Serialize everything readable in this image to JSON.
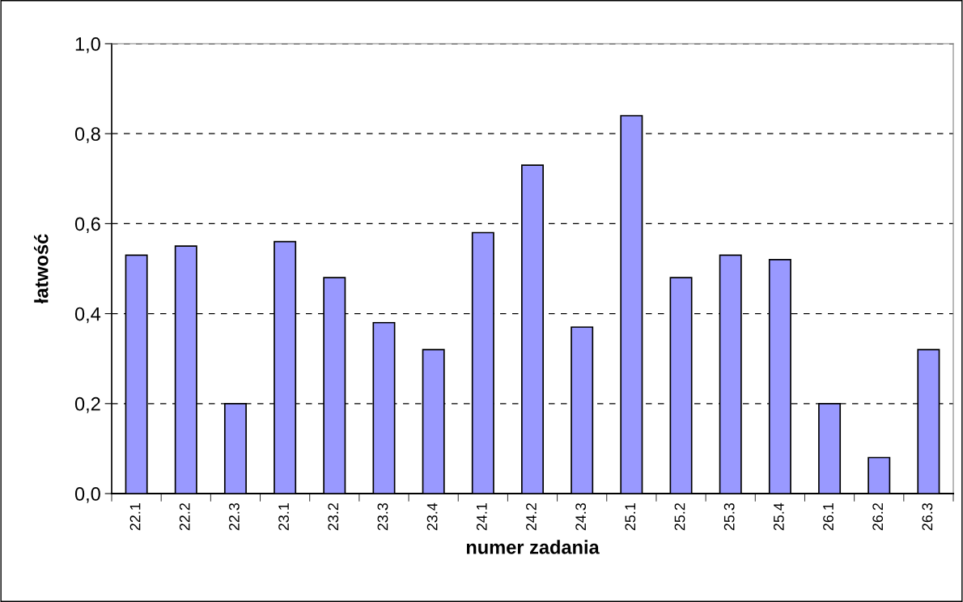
{
  "chart_data": {
    "type": "bar",
    "xlabel": "numer zadania",
    "ylabel": "łatwość",
    "categories": [
      "22.1",
      "22.2",
      "22.3",
      "23.1",
      "23.2",
      "23.3",
      "23.4",
      "24.1",
      "24.2",
      "24.3",
      "25.1",
      "25.2",
      "25.3",
      "25.4",
      "26.1",
      "26.2",
      "26.3"
    ],
    "values": [
      0.53,
      0.55,
      0.2,
      0.56,
      0.48,
      0.38,
      0.32,
      0.58,
      0.73,
      0.37,
      0.84,
      0.48,
      0.53,
      0.52,
      0.2,
      0.08,
      0.32
    ],
    "color": "#9999ff",
    "ylim": [
      0,
      1.0
    ],
    "yticks": [
      {
        "value": 0,
        "label": "0,0"
      },
      {
        "value": 0.2,
        "label": "0,2"
      },
      {
        "value": 0.4,
        "label": "0,4"
      },
      {
        "value": 0.6,
        "label": "0,6"
      },
      {
        "value": 0.8,
        "label": "0,8"
      },
      {
        "value": 1.0,
        "label": "1,0"
      }
    ],
    "grid": "y",
    "legend": false
  }
}
